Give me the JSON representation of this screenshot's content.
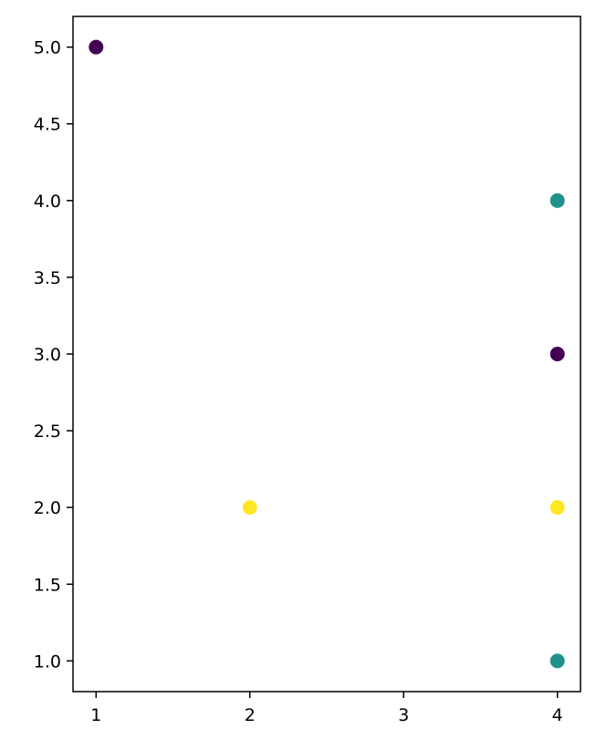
{
  "chart_data": {
    "type": "scatter",
    "title": "",
    "xlabel": "",
    "ylabel": "",
    "xlim": [
      0.85,
      4.15
    ],
    "ylim": [
      0.8,
      5.2
    ],
    "grid": false,
    "x_ticks": [
      1,
      2,
      3,
      4
    ],
    "x_tick_labels": [
      "1",
      "2",
      "3",
      "4"
    ],
    "y_ticks": [
      1.0,
      1.5,
      2.0,
      2.5,
      3.0,
      3.5,
      4.0,
      4.5,
      5.0
    ],
    "y_tick_labels": [
      "1.0",
      "1.5",
      "2.0",
      "2.5",
      "3.0",
      "3.5",
      "4.0",
      "4.5",
      "5.0"
    ],
    "points": [
      {
        "x": 1,
        "y": 5,
        "color": "#440154"
      },
      {
        "x": 4,
        "y": 4,
        "color": "#21918c"
      },
      {
        "x": 4,
        "y": 3,
        "color": "#440154"
      },
      {
        "x": 2,
        "y": 2,
        "color": "#fde725"
      },
      {
        "x": 4,
        "y": 2,
        "color": "#fde725"
      },
      {
        "x": 4,
        "y": 1,
        "color": "#21918c"
      }
    ]
  }
}
